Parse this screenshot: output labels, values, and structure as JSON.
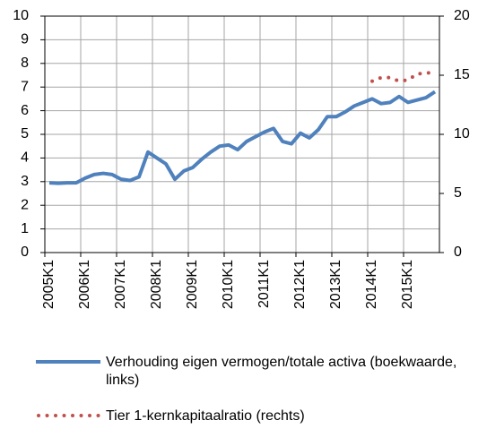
{
  "chart_data": {
    "type": "line",
    "categories": [
      "2005K1",
      null,
      null,
      null,
      "2006K1",
      null,
      null,
      null,
      "2007K1",
      null,
      null,
      null,
      "2008K1",
      null,
      null,
      null,
      "2009K1",
      null,
      null,
      null,
      "2010K1",
      null,
      null,
      null,
      "2011K1",
      null,
      null,
      null,
      "2012K1",
      null,
      null,
      null,
      "2013K1",
      null,
      null,
      null,
      "2014K1",
      null,
      null,
      null,
      "2015K1",
      null,
      null,
      null
    ],
    "series": [
      {
        "name": "Verhouding eigen vermogen/totale activa (boekwaarde, links)",
        "color": "#4f81bd",
        "values": [
          2.95,
          2.93,
          2.95,
          2.95,
          3.15,
          3.3,
          3.35,
          3.3,
          3.1,
          3.05,
          3.2,
          4.25,
          4.0,
          3.75,
          3.1,
          3.45,
          3.6,
          3.95,
          4.25,
          4.5,
          4.55,
          4.35,
          4.7,
          4.9,
          5.1,
          5.25,
          4.7,
          4.6,
          5.05,
          4.85,
          5.2,
          5.75,
          5.75,
          5.95,
          6.2,
          6.35,
          6.5,
          6.3,
          6.35,
          6.6,
          6.35,
          6.45,
          6.55,
          6.8
        ]
      },
      {
        "name": "Tier 1-kernkapitaalratio (rechts)",
        "color": "#c0504d",
        "axis": "y2",
        "values": [
          null,
          null,
          null,
          null,
          null,
          null,
          null,
          null,
          null,
          null,
          null,
          null,
          null,
          null,
          null,
          null,
          null,
          null,
          null,
          null,
          null,
          null,
          null,
          null,
          null,
          null,
          null,
          null,
          null,
          null,
          null,
          null,
          null,
          null,
          null,
          null,
          14.5,
          14.8,
          14.8,
          14.5,
          14.6,
          15.1,
          15.2,
          15.2
        ]
      }
    ],
    "ylim": [
      0,
      10
    ],
    "yticks": [
      0,
      1,
      2,
      3,
      4,
      5,
      6,
      7,
      8,
      9,
      10
    ],
    "y2lim": [
      0,
      20
    ],
    "y2ticks": [
      0,
      5,
      10,
      15,
      20
    ],
    "grid": true
  }
}
